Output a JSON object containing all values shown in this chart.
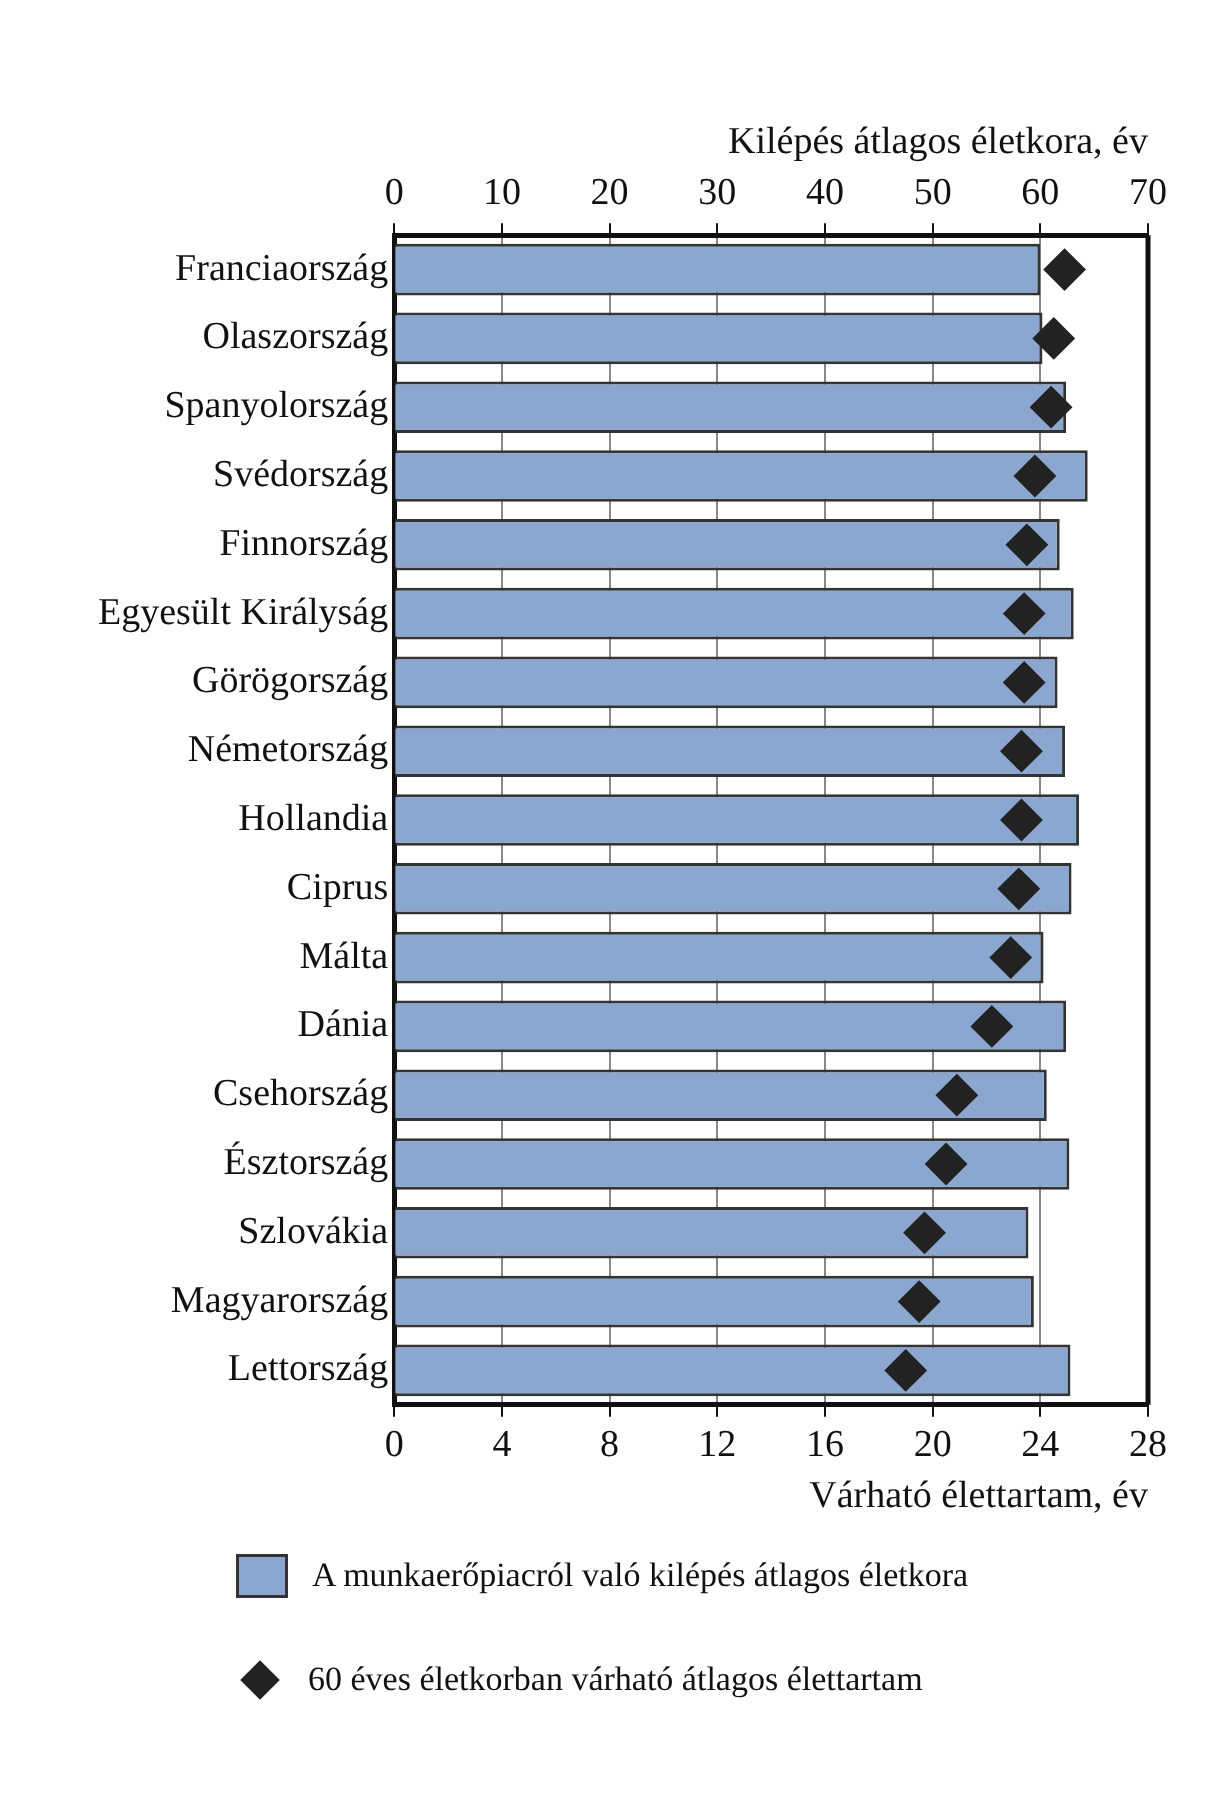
{
  "chart_data": {
    "type": "bar",
    "orientation": "horizontal",
    "categories": [
      "Franciaország",
      "Olaszország",
      "Spanyolország",
      "Svédország",
      "Finnország",
      "Egyesült Királyság",
      "Görögország",
      "Németország",
      "Hollandia",
      "Ciprus",
      "Málta",
      "Dánia",
      "Csehország",
      "Észtország",
      "Szlovákia",
      "Magyarország",
      "Lettország"
    ],
    "series": [
      {
        "name": "A munkaerőpiacról való kilépés átlagos életkora",
        "color": "#8ba6cf",
        "values": [
          60.0,
          60.2,
          62.4,
          64.4,
          61.8,
          63.1,
          61.6,
          62.3,
          63.6,
          62.9,
          60.3,
          62.4,
          60.6,
          62.7,
          58.9,
          59.4,
          62.8
        ]
      },
      {
        "name": "60 éves életkorban várható átlagos élettartam",
        "type": "scatter",
        "axis": "x2",
        "marker": "diamond",
        "color": "#222222",
        "values": [
          24.9,
          24.5,
          24.4,
          23.8,
          23.5,
          23.4,
          23.4,
          23.3,
          23.3,
          23.2,
          22.9,
          22.2,
          20.9,
          20.5,
          19.7,
          19.5,
          19.0
        ]
      }
    ],
    "xlabel": "Kilépés átlagos életkora, év",
    "xlim": [
      0,
      70
    ],
    "xticks": [
      0,
      10,
      20,
      30,
      40,
      50,
      60,
      70
    ],
    "x2label": "Várható élettartam, év",
    "x2lim": [
      0,
      28
    ],
    "x2ticks": [
      0,
      4,
      8,
      12,
      16,
      20,
      24,
      28
    ],
    "grid": "x",
    "legend": "bottom"
  }
}
